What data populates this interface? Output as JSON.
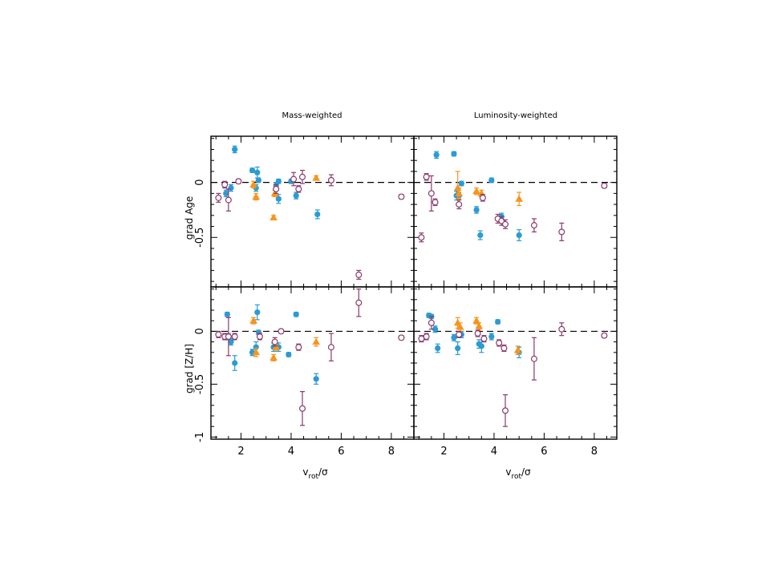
{
  "figure": {
    "x_label": {
      "main": "v",
      "sub": "rot",
      "tail": "/σ"
    },
    "colors": {
      "blue": "#2b9bd3",
      "orange": "#f7941d",
      "purple": "#8b3a6b"
    }
  },
  "chart_data": [
    {
      "type": "scatter",
      "panel": "top-left",
      "title": "Mass-weighted",
      "xlabel": "vrot/σ",
      "ylabel": "grad Age",
      "xlim": [
        0.8,
        8.9
      ],
      "ylim": [
        -0.95,
        0.42
      ],
      "xticks": [
        "2",
        "4",
        "6",
        "8"
      ],
      "yticks": [
        "0",
        "-0.5"
      ],
      "reference_line": 0,
      "series": [
        {
          "marker": "filled-circle",
          "color": "blue",
          "points": [
            {
              "x": 1.75,
              "y": 0.3,
              "e": 0.03
            },
            {
              "x": 1.4,
              "y": -0.1,
              "e": 0.03
            },
            {
              "x": 1.6,
              "y": -0.05,
              "e": 0.03
            },
            {
              "x": 2.45,
              "y": 0.11,
              "e": 0.02
            },
            {
              "x": 2.65,
              "y": 0.09,
              "e": 0.05
            },
            {
              "x": 2.7,
              "y": 0.02,
              "e": 0.02
            },
            {
              "x": 2.6,
              "y": -0.05,
              "e": 0.03
            },
            {
              "x": 3.4,
              "y": -0.03,
              "e": 0.03
            },
            {
              "x": 3.5,
              "y": -0.15,
              "e": 0.04
            },
            {
              "x": 3.5,
              "y": 0.01,
              "e": 0.02
            },
            {
              "x": 4.0,
              "y": 0.01,
              "e": 0.02
            },
            {
              "x": 4.2,
              "y": -0.12,
              "e": 0.03
            },
            {
              "x": 5.05,
              "y": -0.29,
              "e": 0.04
            }
          ]
        },
        {
          "marker": "filled-triangle",
          "color": "orange",
          "points": [
            {
              "x": 2.5,
              "y": -0.02,
              "e": 0.03
            },
            {
              "x": 2.6,
              "y": -0.13,
              "e": 0.03
            },
            {
              "x": 3.3,
              "y": -0.32,
              "e": 0.02
            },
            {
              "x": 3.35,
              "y": -0.1,
              "e": 0.03
            },
            {
              "x": 5.0,
              "y": 0.04,
              "e": 0.02
            }
          ]
        },
        {
          "marker": "open-circle",
          "color": "purple",
          "points": [
            {
              "x": 1.1,
              "y": -0.14,
              "e": 0.04
            },
            {
              "x": 1.35,
              "y": -0.02,
              "e": 0.03
            },
            {
              "x": 1.5,
              "y": -0.16,
              "e": 0.1
            },
            {
              "x": 1.9,
              "y": 0.01,
              "e": 0.02
            },
            {
              "x": 3.4,
              "y": -0.06,
              "e": 0.04
            },
            {
              "x": 4.1,
              "y": 0.03,
              "e": 0.06
            },
            {
              "x": 4.45,
              "y": 0.05,
              "e": 0.06
            },
            {
              "x": 4.3,
              "y": -0.06,
              "e": 0.03
            },
            {
              "x": 5.6,
              "y": 0.02,
              "e": 0.05
            },
            {
              "x": 6.7,
              "y": -0.84,
              "e": 0.04
            },
            {
              "x": 8.4,
              "y": -0.13,
              "e": 0.02
            }
          ]
        }
      ]
    },
    {
      "type": "scatter",
      "panel": "top-right",
      "title": "Luminosity-weighted",
      "xlabel": "vrot/σ",
      "ylabel": "",
      "xlim": [
        0.8,
        8.9
      ],
      "ylim": [
        -0.95,
        0.42
      ],
      "xticks": [
        "2",
        "4",
        "6",
        "8"
      ],
      "yticks": [],
      "reference_line": 0,
      "series": [
        {
          "marker": "filled-circle",
          "color": "blue",
          "points": [
            {
              "x": 1.7,
              "y": 0.25,
              "e": 0.03
            },
            {
              "x": 2.4,
              "y": 0.26,
              "e": 0.02
            },
            {
              "x": 2.7,
              "y": -0.01,
              "e": 0.02
            },
            {
              "x": 2.5,
              "y": -0.12,
              "e": 0.04
            },
            {
              "x": 2.6,
              "y": -0.12,
              "e": 0.03
            },
            {
              "x": 3.3,
              "y": -0.25,
              "e": 0.03
            },
            {
              "x": 3.45,
              "y": -0.48,
              "e": 0.04
            },
            {
              "x": 3.9,
              "y": 0.02,
              "e": 0.02
            },
            {
              "x": 4.3,
              "y": -0.31,
              "e": 0.03
            },
            {
              "x": 5.0,
              "y": -0.48,
              "e": 0.05
            }
          ]
        },
        {
          "marker": "filled-triangle",
          "color": "orange",
          "points": [
            {
              "x": 2.55,
              "y": -0.05,
              "e": 0.15
            },
            {
              "x": 2.6,
              "y": -0.1,
              "e": 0.05
            },
            {
              "x": 3.3,
              "y": -0.08,
              "e": 0.03
            },
            {
              "x": 3.5,
              "y": -0.1,
              "e": 0.03
            },
            {
              "x": 5.0,
              "y": -0.15,
              "e": 0.06
            }
          ]
        },
        {
          "marker": "open-circle",
          "color": "purple",
          "points": [
            {
              "x": 1.1,
              "y": -0.5,
              "e": 0.04
            },
            {
              "x": 1.3,
              "y": 0.05,
              "e": 0.03
            },
            {
              "x": 1.5,
              "y": -0.1,
              "e": 0.16
            },
            {
              "x": 1.65,
              "y": -0.18,
              "e": 0.03
            },
            {
              "x": 2.6,
              "y": -0.2,
              "e": 0.04
            },
            {
              "x": 3.55,
              "y": -0.14,
              "e": 0.03
            },
            {
              "x": 4.15,
              "y": -0.33,
              "e": 0.04
            },
            {
              "x": 4.3,
              "y": -0.35,
              "e": 0.04
            },
            {
              "x": 4.45,
              "y": -0.38,
              "e": 0.04
            },
            {
              "x": 5.6,
              "y": -0.39,
              "e": 0.06
            },
            {
              "x": 6.7,
              "y": -0.45,
              "e": 0.08
            },
            {
              "x": 8.4,
              "y": -0.03,
              "e": 0.02
            }
          ]
        }
      ]
    },
    {
      "type": "scatter",
      "panel": "bottom-left",
      "title": "",
      "xlabel": "vrot/σ",
      "ylabel": "grad [Z/H]",
      "xlim": [
        0.8,
        8.9
      ],
      "ylim": [
        -1.02,
        0.42
      ],
      "xticks": [
        "2",
        "4",
        "6",
        "8"
      ],
      "yticks": [
        "0",
        "-0.5",
        "-1"
      ],
      "reference_line": 0,
      "series": [
        {
          "marker": "filled-circle",
          "color": "blue",
          "points": [
            {
              "x": 1.45,
              "y": 0.16,
              "e": 0.02
            },
            {
              "x": 1.5,
              "y": -0.05,
              "e": 0.03
            },
            {
              "x": 1.6,
              "y": -0.1,
              "e": 0.03
            },
            {
              "x": 1.75,
              "y": -0.3,
              "e": 0.07
            },
            {
              "x": 2.45,
              "y": -0.2,
              "e": 0.03
            },
            {
              "x": 2.6,
              "y": -0.15,
              "e": 0.05
            },
            {
              "x": 2.65,
              "y": 0.18,
              "e": 0.07
            },
            {
              "x": 2.7,
              "y": -0.01,
              "e": 0.02
            },
            {
              "x": 3.3,
              "y": -0.15,
              "e": 0.04
            },
            {
              "x": 3.5,
              "y": -0.15,
              "e": 0.04
            },
            {
              "x": 3.9,
              "y": -0.22,
              "e": 0.02
            },
            {
              "x": 4.2,
              "y": 0.16,
              "e": 0.02
            },
            {
              "x": 5.0,
              "y": -0.45,
              "e": 0.05
            }
          ]
        },
        {
          "marker": "filled-triangle",
          "color": "orange",
          "points": [
            {
              "x": 2.5,
              "y": 0.1,
              "e": 0.03
            },
            {
              "x": 2.6,
              "y": -0.2,
              "e": 0.04
            },
            {
              "x": 3.3,
              "y": -0.25,
              "e": 0.03
            },
            {
              "x": 3.4,
              "y": -0.15,
              "e": 0.03
            },
            {
              "x": 5.0,
              "y": -0.1,
              "e": 0.04
            }
          ]
        },
        {
          "marker": "open-circle",
          "color": "purple",
          "points": [
            {
              "x": 1.1,
              "y": -0.03,
              "e": 0.03
            },
            {
              "x": 1.35,
              "y": -0.05,
              "e": 0.03
            },
            {
              "x": 1.5,
              "y": -0.05,
              "e": 0.18
            },
            {
              "x": 1.75,
              "y": -0.05,
              "e": 0.03
            },
            {
              "x": 2.75,
              "y": -0.05,
              "e": 0.03
            },
            {
              "x": 3.35,
              "y": -0.1,
              "e": 0.04
            },
            {
              "x": 3.6,
              "y": 0.0,
              "e": 0.02
            },
            {
              "x": 4.3,
              "y": -0.15,
              "e": 0.03
            },
            {
              "x": 4.45,
              "y": -0.73,
              "e": 0.16
            },
            {
              "x": 5.6,
              "y": -0.15,
              "e": 0.13
            },
            {
              "x": 6.7,
              "y": 0.27,
              "e": 0.13
            },
            {
              "x": 8.4,
              "y": -0.06,
              "e": 0.02
            }
          ]
        }
      ]
    },
    {
      "type": "scatter",
      "panel": "bottom-right",
      "title": "",
      "xlabel": "vrot/σ",
      "ylabel": "",
      "xlim": [
        0.8,
        8.9
      ],
      "ylim": [
        -1.02,
        0.42
      ],
      "xticks": [
        "2",
        "4",
        "6",
        "8"
      ],
      "yticks": [],
      "reference_line": 0,
      "series": [
        {
          "marker": "filled-circle",
          "color": "blue",
          "points": [
            {
              "x": 1.4,
              "y": 0.15,
              "e": 0.02
            },
            {
              "x": 1.5,
              "y": 0.14,
              "e": 0.02
            },
            {
              "x": 1.65,
              "y": 0.02,
              "e": 0.03
            },
            {
              "x": 1.75,
              "y": -0.16,
              "e": 0.04
            },
            {
              "x": 2.4,
              "y": -0.06,
              "e": 0.03
            },
            {
              "x": 2.55,
              "y": -0.16,
              "e": 0.06
            },
            {
              "x": 2.7,
              "y": -0.03,
              "e": 0.03
            },
            {
              "x": 3.4,
              "y": -0.12,
              "e": 0.04
            },
            {
              "x": 3.5,
              "y": -0.14,
              "e": 0.06
            },
            {
              "x": 3.9,
              "y": -0.05,
              "e": 0.03
            },
            {
              "x": 4.15,
              "y": 0.09,
              "e": 0.02
            },
            {
              "x": 5.0,
              "y": -0.2,
              "e": 0.05
            }
          ]
        },
        {
          "marker": "filled-triangle",
          "color": "orange",
          "points": [
            {
              "x": 2.55,
              "y": 0.08,
              "e": 0.05
            },
            {
              "x": 2.65,
              "y": 0.04,
              "e": 0.04
            },
            {
              "x": 3.3,
              "y": 0.1,
              "e": 0.03
            },
            {
              "x": 3.4,
              "y": 0.05,
              "e": 0.03
            },
            {
              "x": 4.95,
              "y": -0.18,
              "e": 0.04
            }
          ]
        },
        {
          "marker": "open-circle",
          "color": "purple",
          "points": [
            {
              "x": 1.1,
              "y": -0.07,
              "e": 0.03
            },
            {
              "x": 1.3,
              "y": -0.05,
              "e": 0.03
            },
            {
              "x": 1.5,
              "y": 0.08,
              "e": 0.06
            },
            {
              "x": 2.6,
              "y": -0.03,
              "e": 0.03
            },
            {
              "x": 3.35,
              "y": -0.02,
              "e": 0.03
            },
            {
              "x": 3.6,
              "y": -0.07,
              "e": 0.03
            },
            {
              "x": 4.2,
              "y": -0.11,
              "e": 0.03
            },
            {
              "x": 4.4,
              "y": -0.16,
              "e": 0.03
            },
            {
              "x": 4.45,
              "y": -0.75,
              "e": 0.15
            },
            {
              "x": 5.6,
              "y": -0.26,
              "e": 0.2
            },
            {
              "x": 6.7,
              "y": 0.02,
              "e": 0.06
            },
            {
              "x": 8.4,
              "y": -0.04,
              "e": 0.02
            }
          ]
        }
      ]
    }
  ]
}
